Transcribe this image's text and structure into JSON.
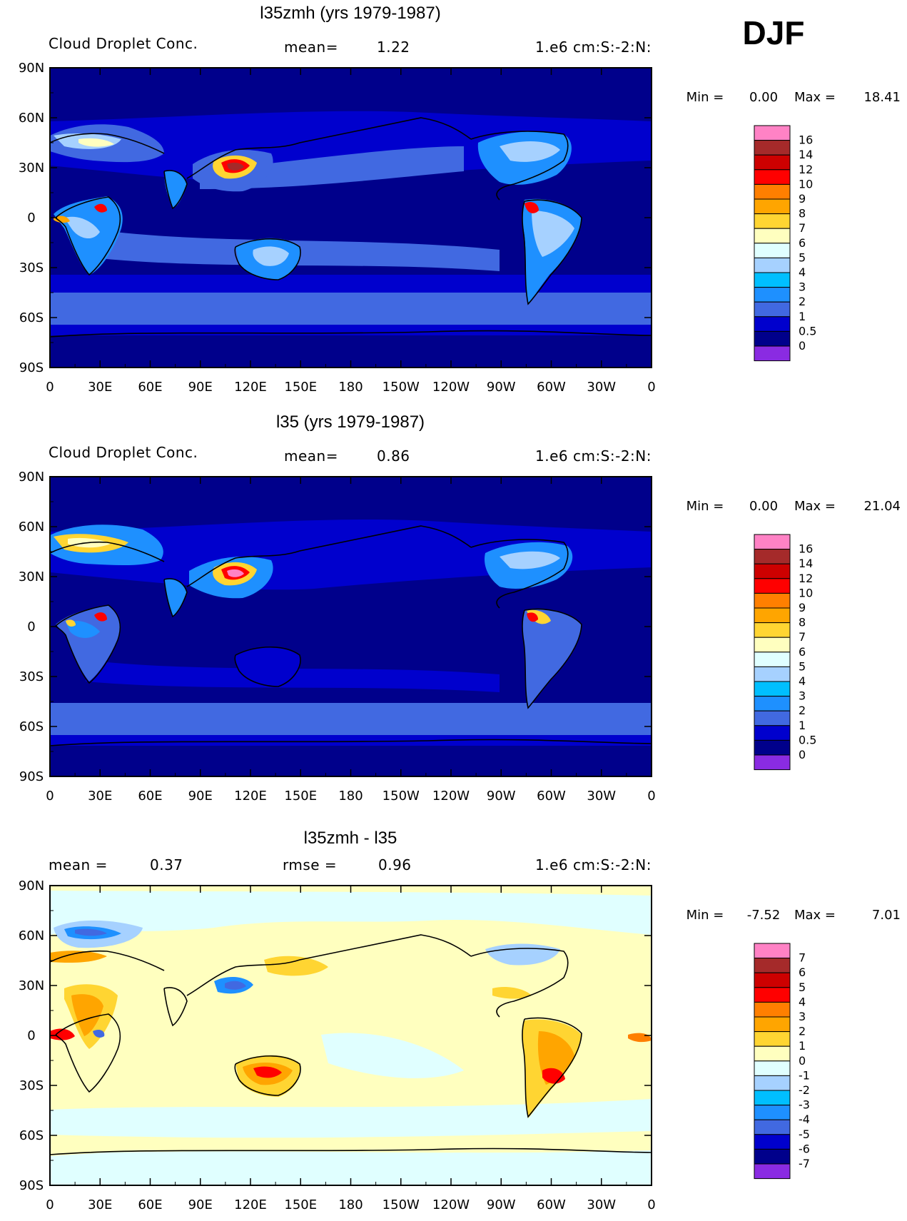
{
  "season_label": "DJF",
  "lon_ticks": [
    "0",
    "30E",
    "60E",
    "90E",
    "120E",
    "150E",
    "180",
    "150W",
    "120W",
    "90W",
    "60W",
    "30W",
    "0"
  ],
  "lat_ticks": [
    "90N",
    "60N",
    "30N",
    "0",
    "30S",
    "60S",
    "90S"
  ],
  "panels": [
    {
      "title": "l35zmh (yrs 1979-1987)",
      "left_label": "Cloud Droplet Conc.",
      "mid_label": "mean=",
      "mid_value": "1.22",
      "right_label": "1.e6 cm:S:-2:N:",
      "min_label": "Min =",
      "min_value": "0.00",
      "max_label": "Max =",
      "max_value": "18.41",
      "colorbar_labels": [
        "16",
        "14",
        "12",
        "10",
        "9",
        "8",
        "7",
        "6",
        "5",
        "4",
        "3",
        "2",
        "1",
        "0.5",
        "0"
      ],
      "colorbar_colors": [
        "#ff82c5",
        "#a52a2a",
        "#cd0000",
        "#ff0000",
        "#ff7f00",
        "#ffa500",
        "#ffd532",
        "#ffffbf",
        "#e0ffff",
        "#a6d1ff",
        "#00bfff",
        "#1e90ff",
        "#4169e1",
        "#0000cd",
        "#00008b",
        "#8a2be2"
      ],
      "ocean_color": "#00008b"
    },
    {
      "title": "l35 (yrs 1979-1987)",
      "left_label": "Cloud Droplet Conc.",
      "mid_label": "mean=",
      "mid_value": "0.86",
      "right_label": "1.e6 cm:S:-2:N:",
      "min_label": "Min =",
      "min_value": "0.00",
      "max_label": "Max =",
      "max_value": "21.04",
      "colorbar_labels": [
        "16",
        "14",
        "12",
        "10",
        "9",
        "8",
        "7",
        "6",
        "5",
        "4",
        "3",
        "2",
        "1",
        "0.5",
        "0"
      ],
      "colorbar_colors": [
        "#ff82c5",
        "#a52a2a",
        "#cd0000",
        "#ff0000",
        "#ff7f00",
        "#ffa500",
        "#ffd532",
        "#ffffbf",
        "#e0ffff",
        "#a6d1ff",
        "#00bfff",
        "#1e90ff",
        "#4169e1",
        "#0000cd",
        "#00008b",
        "#8a2be2"
      ],
      "ocean_color": "#00008b"
    },
    {
      "title": "l35zmh - l35",
      "left_label": "mean =",
      "left_value": "0.37",
      "mid_label": "rmse =",
      "mid_value": "0.96",
      "right_label": "1.e6 cm:S:-2:N:",
      "min_label": "Min =",
      "min_value": "-7.52",
      "max_label": "Max =",
      "max_value": "7.01",
      "colorbar_labels": [
        "7",
        "6",
        "5",
        "4",
        "3",
        "2",
        "1",
        "0",
        "-1",
        "-2",
        "-3",
        "-4",
        "-5",
        "-6",
        "-7"
      ],
      "colorbar_colors": [
        "#ff82c5",
        "#a52a2a",
        "#cd0000",
        "#ff0000",
        "#ff7f00",
        "#ffa500",
        "#ffd532",
        "#ffffbf",
        "#e0ffff",
        "#a6d1ff",
        "#00bfff",
        "#1e90ff",
        "#4169e1",
        "#0000cd",
        "#00008b",
        "#8a2be2"
      ],
      "ocean_color": "#ffffbf"
    }
  ]
}
